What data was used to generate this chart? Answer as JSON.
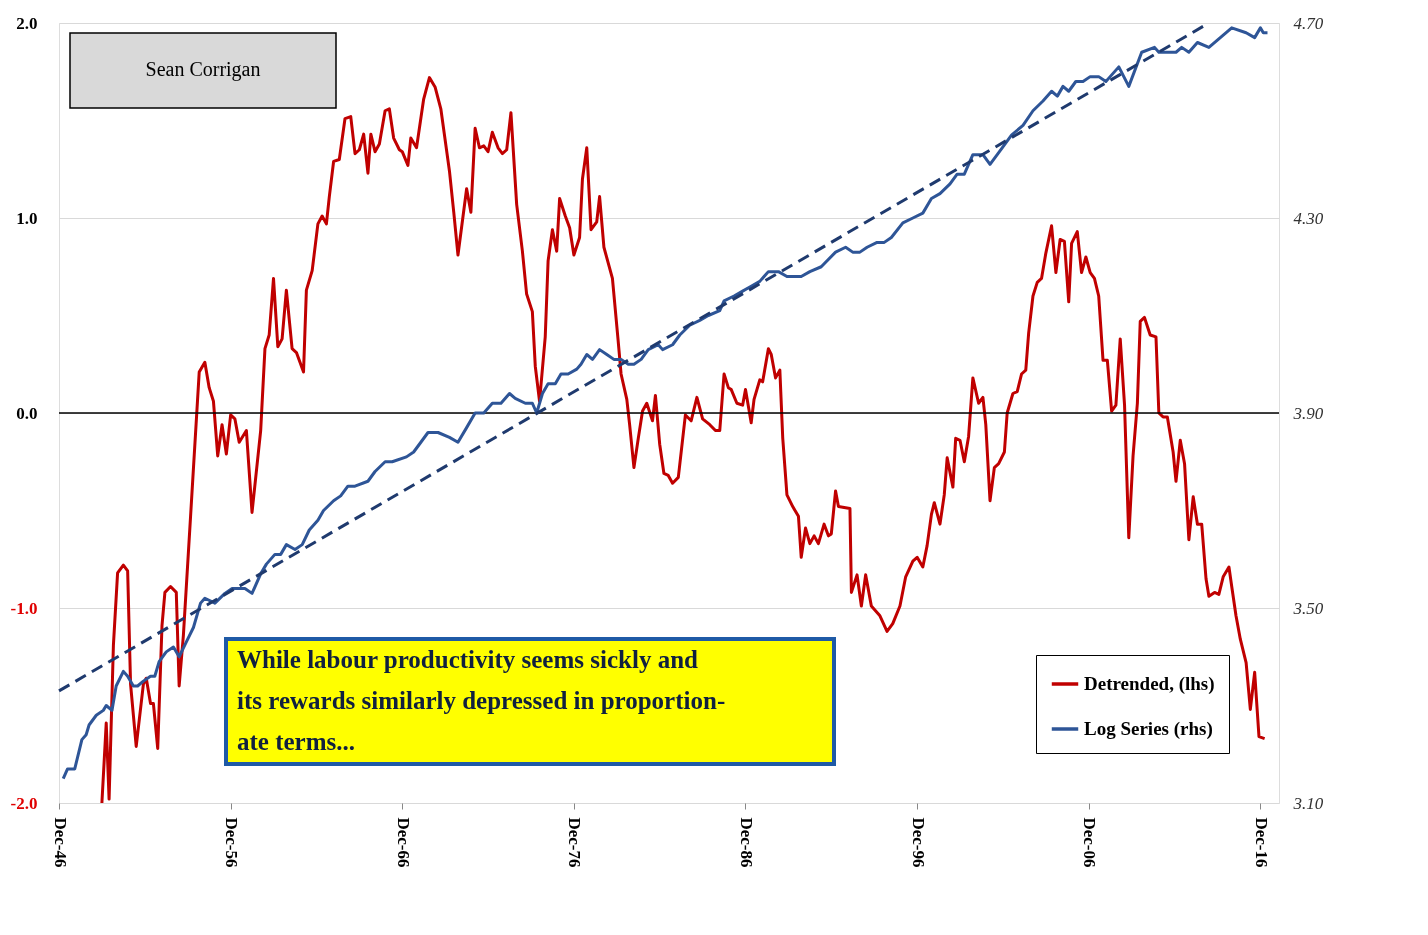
{
  "chart_data": {
    "type": "line",
    "xlim": [
      "1946-12",
      "2018-01"
    ],
    "xticks": [
      {
        "value": "1946-12",
        "label": "Dec-46"
      },
      {
        "value": "1956-12",
        "label": "Dec-56"
      },
      {
        "value": "1966-12",
        "label": "Dec-66"
      },
      {
        "value": "1976-12",
        "label": "Dec-76"
      },
      {
        "value": "1986-12",
        "label": "Dec-86"
      },
      {
        "value": "1996-12",
        "label": "Dec-96"
      },
      {
        "value": "2006-12",
        "label": "Dec-06"
      },
      {
        "value": "2016-12",
        "label": "Dec-16"
      }
    ],
    "ylim": [
      -2,
      2
    ],
    "yticks": [
      {
        "value": -2,
        "label": "-2.0"
      },
      {
        "value": -1,
        "label": "-1.0"
      },
      {
        "value": 0,
        "label": "0.0"
      },
      {
        "value": 1,
        "label": "1.0"
      },
      {
        "value": 2,
        "label": "2.0"
      }
    ],
    "y2lim": [
      3.1,
      4.7
    ],
    "y2ticks": [
      {
        "value": 3.1,
        "label": "3.10"
      },
      {
        "value": 3.5,
        "label": "3.50"
      },
      {
        "value": 3.9,
        "label": "3.90"
      },
      {
        "value": 4.3,
        "label": "4.30"
      },
      {
        "value": 4.7,
        "label": "4.70"
      }
    ],
    "grid": "y",
    "legend": "bottom right",
    "ref_lines": [
      {
        "axis": "y",
        "value": 0,
        "color": "#000000"
      }
    ],
    "annotations": [
      "Sean Corrigan",
      "While labour productivity seems sickly and\nits rewards similarly depressed in proportion-\nate terms..."
    ],
    "series": [
      {
        "name": "Detrended, (lhs)",
        "axis": "y",
        "color": "#c00000",
        "x": [
          "1949-06",
          "1949-09",
          "1949-11",
          "1950-02",
          "1950-05",
          "1950-09",
          "1950-12",
          "1951-02",
          "1951-06",
          "1951-11",
          "1952-01",
          "1952-04",
          "1952-06",
          "1952-09",
          "1952-12",
          "1953-02",
          "1953-06",
          "1953-10",
          "1953-12",
          "1954-03",
          "1954-08",
          "1955-02",
          "1955-06",
          "1955-09",
          "1955-12",
          "1956-03",
          "1956-06",
          "1956-09",
          "1956-12",
          "1957-03",
          "1957-06",
          "1957-11",
          "1958-03",
          "1958-09",
          "1958-12",
          "1959-03",
          "1959-06",
          "1959-09",
          "1959-12",
          "1960-03",
          "1960-07",
          "1960-10",
          "1961-03",
          "1961-05",
          "1961-09",
          "1962-01",
          "1962-04",
          "1962-07",
          "1962-09",
          "1962-12",
          "1963-04",
          "1963-08",
          "1963-12",
          "1964-03",
          "1964-06",
          "1964-09",
          "1964-12",
          "1965-02",
          "1965-05",
          "1965-08",
          "1965-12",
          "1966-03",
          "1966-06",
          "1966-10",
          "1966-12",
          "1967-04",
          "1967-06",
          "1967-10",
          "1968-03",
          "1968-07",
          "1968-11",
          "1969-03",
          "1969-09",
          "1969-12",
          "1970-03",
          "1970-09",
          "1970-12",
          "1971-03",
          "1971-06",
          "1971-09",
          "1971-12",
          "1972-03",
          "1972-07",
          "1972-10",
          "1973-01",
          "1973-04",
          "1973-08",
          "1973-12",
          "1974-03",
          "1974-07",
          "1974-09",
          "1974-12",
          "1975-04",
          "1975-06",
          "1975-09",
          "1975-12",
          "1976-02",
          "1976-06",
          "1976-09",
          "1976-12",
          "1977-04",
          "1977-06",
          "1977-09",
          "1977-12",
          "1978-04",
          "1978-06",
          "1978-09",
          "1979-03",
          "1979-07",
          "1979-09",
          "1980-01",
          "1980-03",
          "1980-06",
          "1980-09",
          "1980-12",
          "1981-03",
          "1981-07",
          "1981-09",
          "1981-12",
          "1982-03",
          "1982-06",
          "1982-09",
          "1983-01",
          "1983-06",
          "1983-10",
          "1984-02",
          "1984-06",
          "1984-11",
          "1985-03",
          "1985-06",
          "1985-09",
          "1985-12",
          "1986-02",
          "1986-06",
          "1986-10",
          "1986-12",
          "1987-04",
          "1987-06",
          "1987-10",
          "1987-12",
          "1988-04",
          "1988-06",
          "1988-09",
          "1988-12",
          "1989-02",
          "1989-05",
          "1989-09",
          "1990-01",
          "1990-03",
          "1990-06",
          "1990-09",
          "1990-12",
          "1991-03",
          "1991-07",
          "1991-10",
          "1991-12",
          "1992-03",
          "1992-05",
          "1993-01",
          "1993-02",
          "1993-06",
          "1993-09",
          "1993-12",
          "1994-04",
          "1994-10",
          "1995-03",
          "1995-07",
          "1995-12",
          "1996-04",
          "1996-09",
          "1996-12",
          "1997-04",
          "1997-07",
          "1997-10",
          "1997-12",
          "1998-04",
          "1998-07",
          "1998-09",
          "1999-01",
          "1999-03",
          "1999-06",
          "1999-09",
          "1999-12",
          "2000-03",
          "2000-07",
          "2000-10",
          "2000-12",
          "2001-03",
          "2001-06",
          "2001-09",
          "2002-01",
          "2002-03",
          "2002-07",
          "2002-10",
          "2003-01",
          "2003-04",
          "2003-06",
          "2003-09",
          "2003-12",
          "2004-03",
          "2004-06",
          "2004-10",
          "2005-01",
          "2005-04",
          "2005-07",
          "2005-10",
          "2005-12",
          "2006-04",
          "2006-07",
          "2006-10",
          "2007-01",
          "2007-04",
          "2007-07",
          "2007-10",
          "2008-01",
          "2008-04",
          "2008-07",
          "2008-10",
          "2009-01",
          "2009-04",
          "2009-07",
          "2009-10",
          "2009-12",
          "2010-03",
          "2010-07",
          "2010-11",
          "2011-01",
          "2011-04",
          "2011-07",
          "2011-11",
          "2012-01",
          "2012-04",
          "2012-07",
          "2012-10",
          "2013-01",
          "2013-04",
          "2013-07",
          "2013-10",
          "2013-12",
          "2014-04",
          "2014-07",
          "2014-10",
          "2015-02",
          "2015-04",
          "2015-07",
          "2015-10",
          "2016-02",
          "2016-05",
          "2016-08",
          "2016-11",
          "2017-03"
        ],
        "values": [
          -2.0,
          -1.59,
          -1.98,
          -1.19,
          -0.82,
          -0.78,
          -0.81,
          -1.39,
          -1.71,
          -1.39,
          -1.36,
          -1.49,
          -1.49,
          -1.72,
          -1.09,
          -0.92,
          -0.89,
          -0.92,
          -1.4,
          -1.14,
          -0.53,
          0.21,
          0.26,
          0.13,
          0.06,
          -0.22,
          -0.06,
          -0.21,
          -0.01,
          -0.03,
          -0.15,
          -0.09,
          -0.51,
          -0.09,
          0.33,
          0.4,
          0.69,
          0.34,
          0.38,
          0.63,
          0.33,
          0.31,
          0.21,
          0.63,
          0.73,
          0.97,
          1.01,
          0.97,
          1.11,
          1.29,
          1.3,
          1.51,
          1.52,
          1.33,
          1.35,
          1.43,
          1.23,
          1.43,
          1.34,
          1.38,
          1.55,
          1.56,
          1.41,
          1.35,
          1.34,
          1.27,
          1.41,
          1.36,
          1.61,
          1.72,
          1.67,
          1.56,
          1.24,
          1.03,
          0.81,
          1.15,
          1.03,
          1.46,
          1.36,
          1.37,
          1.34,
          1.44,
          1.36,
          1.33,
          1.35,
          1.54,
          1.07,
          0.83,
          0.61,
          0.52,
          0.24,
          0.06,
          0.39,
          0.78,
          0.94,
          0.83,
          1.1,
          1.01,
          0.95,
          0.81,
          0.9,
          1.2,
          1.36,
          0.94,
          0.98,
          1.11,
          0.85,
          0.69,
          0.37,
          0.2,
          0.07,
          -0.06,
          -0.28,
          -0.13,
          0.01,
          0.05,
          -0.04,
          0.09,
          -0.16,
          -0.31,
          -0.32,
          -0.36,
          -0.33,
          -0.01,
          -0.04,
          0.08,
          -0.03,
          -0.06,
          -0.09,
          -0.09,
          0.2,
          0.13,
          0.12,
          0.05,
          0.04,
          0.12,
          -0.05,
          0.07,
          0.17,
          0.16,
          0.33,
          0.3,
          0.18,
          0.22,
          -0.13,
          -0.42,
          -0.48,
          -0.53,
          -0.74,
          -0.59,
          -0.67,
          -0.63,
          -0.67,
          -0.57,
          -0.63,
          -0.62,
          -0.4,
          -0.48,
          -0.49,
          -0.92,
          -0.83,
          -0.99,
          -0.83,
          -0.99,
          -1.04,
          -1.12,
          -1.08,
          -0.99,
          -0.84,
          -0.76,
          -0.74,
          -0.79,
          -0.68,
          -0.52,
          -0.46,
          -0.57,
          -0.42,
          -0.23,
          -0.38,
          -0.13,
          -0.14,
          -0.25,
          -0.12,
          0.18,
          0.05,
          0.08,
          -0.06,
          -0.45,
          -0.28,
          -0.26,
          -0.2,
          0.0,
          0.1,
          0.11,
          0.2,
          0.22,
          0.41,
          0.6,
          0.67,
          0.69,
          0.82,
          0.96,
          0.72,
          0.89,
          0.88,
          0.57,
          0.87,
          0.93,
          0.72,
          0.8,
          0.72,
          0.69,
          0.6,
          0.27,
          0.27,
          0.01,
          0.04,
          0.38,
          0.04,
          -0.64,
          -0.22,
          0.05,
          0.47,
          0.49,
          0.4,
          0.39,
          0.0,
          -0.02,
          -0.02,
          -0.2,
          -0.35,
          -0.14,
          -0.26,
          -0.65,
          -0.43,
          -0.57,
          -0.57,
          -0.85,
          -0.94,
          -0.92,
          -0.93,
          -0.84,
          -0.79,
          -0.89,
          -1.04,
          -1.16,
          -1.28,
          -1.52,
          -1.33,
          -1.66,
          -1.67
        ]
      },
      {
        "name": "Log Series (rhs)",
        "axis": "y2",
        "color": "#2e5597",
        "x": [
          "1947-03",
          "1947-06",
          "1947-11",
          "1948-04",
          "1948-07",
          "1948-09",
          "1949-02",
          "1949-07",
          "1949-09",
          "1950-01",
          "1950-04",
          "1950-09",
          "1950-12",
          "1951-04",
          "1951-07",
          "1951-11",
          "1952-04",
          "1952-07",
          "1952-10",
          "1953-03",
          "1953-08",
          "1953-12",
          "1954-05",
          "1954-10",
          "1955-03",
          "1955-06",
          "1956-01",
          "1956-08",
          "1957-01",
          "1957-10",
          "1958-03",
          "1958-09",
          "1959-01",
          "1959-07",
          "1959-11",
          "1960-03",
          "1960-09",
          "1961-02",
          "1961-07",
          "1962-01",
          "1962-05",
          "1962-12",
          "1963-05",
          "1963-10",
          "1964-03",
          "1964-12",
          "1965-05",
          "1965-12",
          "1966-05",
          "1967-03",
          "1967-08",
          "1968-01",
          "1968-06",
          "1969-01",
          "1969-09",
          "1970-03",
          "1970-09",
          "1971-03",
          "1971-09",
          "1972-03",
          "1972-09",
          "1973-03",
          "1973-07",
          "1974-02",
          "1974-07",
          "1974-10",
          "1975-02",
          "1975-06",
          "1975-11",
          "1976-03",
          "1976-08",
          "1977-02",
          "1977-05",
          "1977-09",
          "1978-01",
          "1978-06",
          "1978-11",
          "1979-04",
          "1979-09",
          "1980-02",
          "1980-06",
          "1980-11",
          "1981-04",
          "1981-11",
          "1982-02",
          "1982-09",
          "1983-02",
          "1983-09",
          "1984-04",
          "1984-10",
          "1985-06",
          "1985-09",
          "1986-04",
          "1986-10",
          "1987-04",
          "1987-10",
          "1988-04",
          "1988-11",
          "1989-05",
          "1990-03",
          "1990-09",
          "1991-05",
          "1992-03",
          "1992-10",
          "1993-03",
          "1993-08",
          "1994-01",
          "1994-08",
          "1995-01",
          "1995-06",
          "1996-02",
          "1996-09",
          "1997-04",
          "1997-10",
          "1998-04",
          "1998-11",
          "1999-04",
          "1999-09",
          "2000-03",
          "2000-10",
          "2001-03",
          "2001-08",
          "2002-01",
          "2002-06",
          "2003-02",
          "2003-09",
          "2004-04",
          "2004-10",
          "2005-02",
          "2005-06",
          "2005-10",
          "2006-03",
          "2006-08",
          "2007-01",
          "2007-07",
          "2007-12",
          "2008-03",
          "2008-09",
          "2009-04",
          "2010-01",
          "2010-10",
          "2011-01",
          "2011-08",
          "2012-01",
          "2012-05",
          "2012-10",
          "2013-04",
          "2013-12",
          "2014-08",
          "2015-04",
          "2016-02",
          "2016-08",
          "2016-12",
          "2017-02",
          "2017-05"
        ],
        "values": [
          3.15,
          3.17,
          3.17,
          3.23,
          3.24,
          3.26,
          3.28,
          3.29,
          3.3,
          3.29,
          3.34,
          3.37,
          3.36,
          3.34,
          3.34,
          3.35,
          3.36,
          3.36,
          3.39,
          3.41,
          3.42,
          3.4,
          3.43,
          3.46,
          3.51,
          3.52,
          3.51,
          3.53,
          3.54,
          3.54,
          3.53,
          3.57,
          3.59,
          3.61,
          3.61,
          3.63,
          3.62,
          3.63,
          3.66,
          3.68,
          3.7,
          3.72,
          3.73,
          3.75,
          3.75,
          3.76,
          3.78,
          3.8,
          3.8,
          3.81,
          3.82,
          3.84,
          3.86,
          3.86,
          3.85,
          3.84,
          3.87,
          3.9,
          3.9,
          3.92,
          3.92,
          3.94,
          3.93,
          3.92,
          3.92,
          3.9,
          3.94,
          3.96,
          3.96,
          3.98,
          3.98,
          3.99,
          4.0,
          4.02,
          4.01,
          4.03,
          4.02,
          4.01,
          4.01,
          4.0,
          4.0,
          4.01,
          4.03,
          4.04,
          4.03,
          4.04,
          4.06,
          4.08,
          4.09,
          4.1,
          4.11,
          4.13,
          4.14,
          4.15,
          4.16,
          4.17,
          4.19,
          4.19,
          4.18,
          4.18,
          4.19,
          4.2,
          4.23,
          4.24,
          4.23,
          4.23,
          4.24,
          4.25,
          4.25,
          4.26,
          4.29,
          4.3,
          4.31,
          4.34,
          4.35,
          4.37,
          4.39,
          4.39,
          4.43,
          4.43,
          4.41,
          4.43,
          4.45,
          4.47,
          4.49,
          4.52,
          4.54,
          4.56,
          4.55,
          4.57,
          4.56,
          4.58,
          4.58,
          4.59,
          4.59,
          4.58,
          4.59,
          4.61,
          4.57,
          4.64,
          4.65,
          4.64,
          4.64,
          4.64,
          4.65,
          4.64,
          4.66,
          4.65,
          4.67,
          4.69,
          4.68,
          4.67,
          4.69,
          4.68,
          4.68
        ]
      },
      {
        "axis": "y2",
        "color": "#1f3a6e",
        "line_style": "dashed",
        "x": [
          "1946-12",
          "2013-12"
        ],
        "values": [
          3.33,
          4.7
        ]
      }
    ]
  }
}
